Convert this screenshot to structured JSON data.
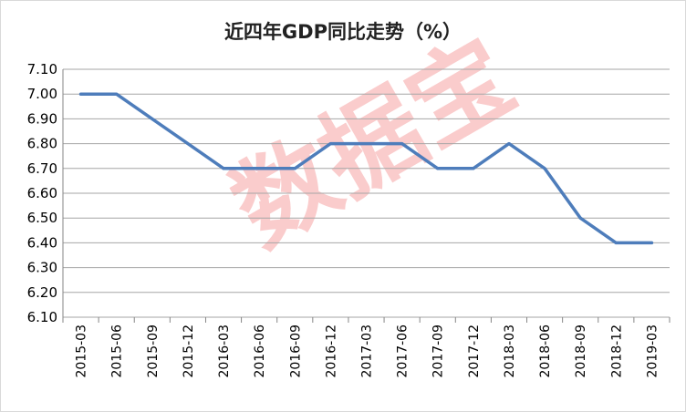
{
  "chart_data": {
    "type": "line",
    "title": "近四年GDP同比走势（%）",
    "watermark": "数据宝",
    "xlabel": "",
    "ylabel": "",
    "categories": [
      "2015-03",
      "2015-06",
      "2015-09",
      "2015-12",
      "2016-03",
      "2016-06",
      "2016-09",
      "2016-12",
      "2017-03",
      "2017-06",
      "2017-09",
      "2017-12",
      "2018-03",
      "2018-06",
      "2018-09",
      "2018-12",
      "2019-03"
    ],
    "series": [
      {
        "name": "",
        "values": [
          7.0,
          7.0,
          6.9,
          6.8,
          6.7,
          6.7,
          6.7,
          6.8,
          6.8,
          6.8,
          6.7,
          6.7,
          6.8,
          6.7,
          6.5,
          6.4,
          6.4
        ]
      }
    ],
    "ylim": [
      6.1,
      7.1
    ],
    "yticks": [
      "6.10",
      "6.20",
      "6.30",
      "6.40",
      "6.50",
      "6.60",
      "6.70",
      "6.80",
      "6.90",
      "7.00",
      "7.10"
    ],
    "grid": true,
    "legend": "none",
    "line_color": "#4e7dbb",
    "grid_color": "#a6a6a6"
  }
}
